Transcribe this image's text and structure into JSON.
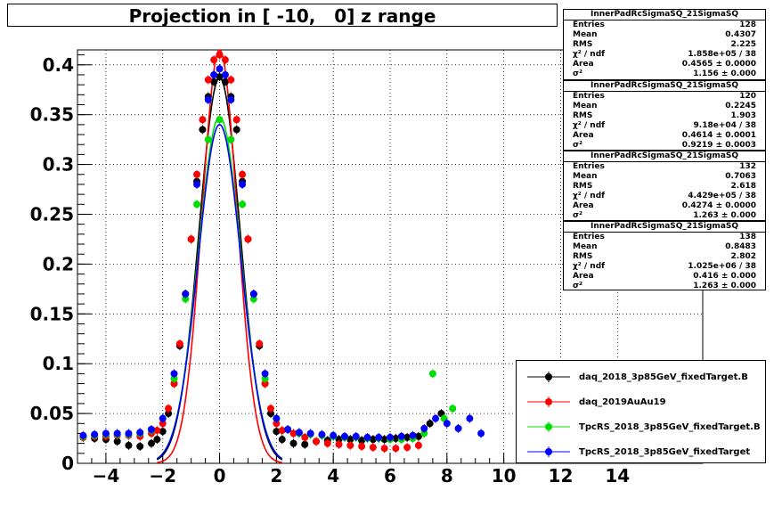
{
  "chart_data": {
    "type": "scatter",
    "title": "Projection in [ -10,   0] z range",
    "xlim": [
      -5,
      17
    ],
    "ylim": [
      0,
      0.415
    ],
    "x_ticks": [
      "−4",
      "−2",
      "0",
      "2",
      "4",
      "6",
      "8",
      "10",
      "12",
      "14"
    ],
    "x_tick_values": [
      -4,
      -2,
      0,
      2,
      4,
      6,
      8,
      10,
      12,
      14
    ],
    "y_ticks": [
      "0",
      "0.05",
      "0.1",
      "0.15",
      "0.2",
      "0.25",
      "0.3",
      "0.35",
      "0.4"
    ],
    "y_tick_values": [
      0,
      0.05,
      0.1,
      0.15,
      0.2,
      0.25,
      0.3,
      0.35,
      0.4
    ],
    "grid": true,
    "legend_position": "bottom-right",
    "series": [
      {
        "name": "daq_2018_3p85GeV_fixedTarget.B",
        "color": "#000000",
        "fit_peak": 0.387,
        "fit_sigma": 0.72,
        "x": [
          -4.8,
          -4.4,
          -4,
          -3.6,
          -3.2,
          -2.8,
          -2.4,
          -2.2,
          -2,
          -1.8,
          -1.6,
          -1.4,
          -1.2,
          -1,
          -0.8,
          -0.6,
          -0.4,
          -0.2,
          0,
          0.2,
          0.4,
          0.6,
          0.8,
          1,
          1.2,
          1.4,
          1.6,
          1.8,
          2,
          2.2,
          2.6,
          3,
          3.4,
          3.8,
          4.2,
          4.6,
          5,
          5.4,
          5.8,
          6.2,
          6.6,
          7,
          7.4,
          7.8
        ],
        "y": [
          0.026,
          0.025,
          0.024,
          0.022,
          0.018,
          0.017,
          0.02,
          0.024,
          0.032,
          0.05,
          0.08,
          0.118,
          0.17,
          0.225,
          0.283,
          0.335,
          0.368,
          0.383,
          0.388,
          0.383,
          0.368,
          0.335,
          0.283,
          0.225,
          0.17,
          0.118,
          0.08,
          0.05,
          0.032,
          0.024,
          0.02,
          0.019,
          0.022,
          0.023,
          0.024,
          0.024,
          0.023,
          0.024,
          0.024,
          0.025,
          0.026,
          0.027,
          0.04,
          0.05
        ]
      },
      {
        "name": "daq_2019AuAu19",
        "color": "#ff0000",
        "fit_peak": 0.415,
        "fit_sigma": 0.62,
        "x": [
          -4.8,
          -4.4,
          -4,
          -3.6,
          -3.2,
          -2.8,
          -2.4,
          -2.2,
          -2,
          -1.8,
          -1.6,
          -1.4,
          -1.2,
          -1,
          -0.8,
          -0.6,
          -0.4,
          -0.2,
          0,
          0.2,
          0.4,
          0.6,
          0.8,
          1,
          1.2,
          1.4,
          1.6,
          1.8,
          2,
          2.2,
          2.6,
          3,
          3.4,
          3.8,
          4.2,
          4.6,
          5,
          5.4,
          5.8,
          6.2,
          6.6,
          7
        ],
        "y": [
          0.026,
          0.027,
          0.027,
          0.028,
          0.028,
          0.027,
          0.03,
          0.033,
          0.04,
          0.055,
          0.08,
          0.12,
          0.17,
          0.225,
          0.29,
          0.345,
          0.385,
          0.405,
          0.41,
          0.405,
          0.385,
          0.345,
          0.29,
          0.225,
          0.17,
          0.12,
          0.08,
          0.055,
          0.04,
          0.033,
          0.03,
          0.026,
          0.022,
          0.02,
          0.019,
          0.018,
          0.017,
          0.016,
          0.015,
          0.015,
          0.016,
          0.018
        ]
      },
      {
        "name": "TpcRS_2018_3p85GeV_fixedTarget.B",
        "color": "#00dd00",
        "fit_peak": 0.348,
        "fit_sigma": 0.75,
        "x": [
          -4.8,
          -4.4,
          -4,
          -3.6,
          -3.2,
          -2.8,
          -2.4,
          -2,
          -1.6,
          -1.2,
          -0.8,
          -0.4,
          0,
          0.4,
          0.8,
          1.2,
          1.6,
          2,
          2.4,
          2.8,
          3.2,
          3.6,
          4,
          4.4,
          4.8,
          5.2,
          5.6,
          6,
          6.4,
          6.8,
          7.2,
          7.5,
          7.9,
          8.2
        ],
        "y": [
          0.027,
          0.028,
          0.029,
          0.029,
          0.029,
          0.03,
          0.033,
          0.045,
          0.085,
          0.165,
          0.26,
          0.325,
          0.345,
          0.325,
          0.26,
          0.165,
          0.085,
          0.045,
          0.034,
          0.03,
          0.029,
          0.028,
          0.027,
          0.026,
          0.026,
          0.025,
          0.025,
          0.024,
          0.024,
          0.025,
          0.03,
          0.09,
          0.045,
          0.055
        ]
      },
      {
        "name": "TpcRS_2018_3p85GeV_fixedTarget",
        "color": "#0000ff",
        "fit_peak": 0.34,
        "fit_sigma": 0.75,
        "x": [
          -4.8,
          -4.4,
          -4,
          -3.6,
          -3.2,
          -2.8,
          -2.4,
          -2,
          -1.6,
          -1.2,
          -0.8,
          -0.4,
          -0.2,
          0,
          0.2,
          0.4,
          0.8,
          1.2,
          1.6,
          2,
          2.4,
          2.8,
          3.2,
          3.6,
          4,
          4.4,
          4.8,
          5.2,
          5.6,
          6,
          6.4,
          6.8,
          7.2,
          7.6,
          8,
          8.4,
          8.8,
          9.2
        ],
        "y": [
          0.028,
          0.029,
          0.03,
          0.03,
          0.03,
          0.031,
          0.034,
          0.045,
          0.09,
          0.17,
          0.28,
          0.365,
          0.39,
          0.396,
          0.39,
          0.365,
          0.28,
          0.17,
          0.09,
          0.045,
          0.034,
          0.031,
          0.03,
          0.029,
          0.028,
          0.027,
          0.027,
          0.026,
          0.026,
          0.026,
          0.027,
          0.028,
          0.035,
          0.045,
          0.04,
          0.035,
          0.045,
          0.03
        ]
      }
    ]
  },
  "stats_boxes": [
    {
      "name": "InnerPadRcSigmaSQ_21SigmaSQ",
      "entries": "128",
      "mean": "0.4307",
      "rms": "2.225",
      "chi2": "1.858e+05 / 38",
      "area": "0.4565 ± 0.0000",
      "sigma2": "1.156 ± 0.000"
    },
    {
      "name": "InnerPadRcSigmaSQ_21SigmaSQ",
      "entries": "120",
      "mean": "0.2245",
      "rms": "1.903",
      "chi2": "9.18e+04 / 38",
      "area": "0.4614 ± 0.0001",
      "sigma2": "0.9219 ± 0.0003"
    },
    {
      "name": "InnerPadRcSigmaSQ_21SigmaSQ",
      "entries": "132",
      "mean": "0.7063",
      "rms": "2.618",
      "chi2": "4.429e+05 / 38",
      "area": "0.4274 ± 0.0000",
      "sigma2": "1.263 ± 0.000"
    },
    {
      "name": "InnerPadRcSigmaSQ_21SigmaSQ",
      "entries": "138",
      "mean": "0.8483",
      "rms": "2.802",
      "chi2": "1.025e+06 / 38",
      "area": "0.416 ± 0.000",
      "sigma2": "1.263 ± 0.000"
    }
  ],
  "stats_labels": {
    "entries": "Entries",
    "mean": "Mean",
    "rms": "RMS",
    "chi2": "χ² / ndf",
    "area": "Area",
    "sigma2": "σ²"
  }
}
